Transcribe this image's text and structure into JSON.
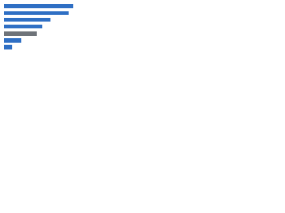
{
  "chart_data": {
    "type": "hbar",
    "values": [
      85,
      79,
      57,
      47,
      40,
      22,
      11
    ],
    "colors": [
      "#2f6fc4",
      "#2f6fc4",
      "#2f6fc4",
      "#2f6fc4",
      "#6e7379",
      "#2f6fc4",
      "#2f6fc4"
    ],
    "xlim": [
      0,
      100
    ]
  }
}
